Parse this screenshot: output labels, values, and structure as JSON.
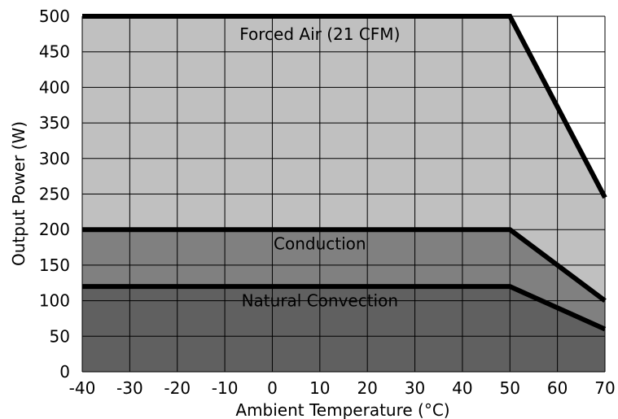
{
  "chart_data": {
    "type": "area",
    "title": "",
    "xlabel": "Ambient Temperature (°C)",
    "ylabel": "Output Power (W)",
    "xlim": [
      -40,
      70
    ],
    "ylim": [
      0,
      500
    ],
    "x_ticks": [
      -40,
      -30,
      -20,
      -10,
      0,
      10,
      20,
      30,
      40,
      50,
      60,
      70
    ],
    "y_ticks": [
      0,
      50,
      100,
      150,
      200,
      250,
      300,
      350,
      400,
      450,
      500
    ],
    "grid": true,
    "series": [
      {
        "name": "Forced Air (21 CFM)",
        "x": [
          -40,
          50,
          70
        ],
        "values": [
          500,
          500,
          245
        ],
        "fill": "#c0c0c0"
      },
      {
        "name": "Conduction",
        "x": [
          -40,
          50,
          70
        ],
        "values": [
          200,
          200,
          100
        ],
        "fill": "#808080"
      },
      {
        "name": "Natural Convection",
        "x": [
          -40,
          50,
          70
        ],
        "values": [
          120,
          120,
          60
        ],
        "fill": "#606060"
      }
    ],
    "annotations": [
      {
        "text": "Forced Air (21 CFM)",
        "x": 10,
        "y": 475
      },
      {
        "text": "Conduction",
        "x": 10,
        "y": 180
      },
      {
        "text": "Natural Convection",
        "x": 10,
        "y": 100
      }
    ]
  }
}
